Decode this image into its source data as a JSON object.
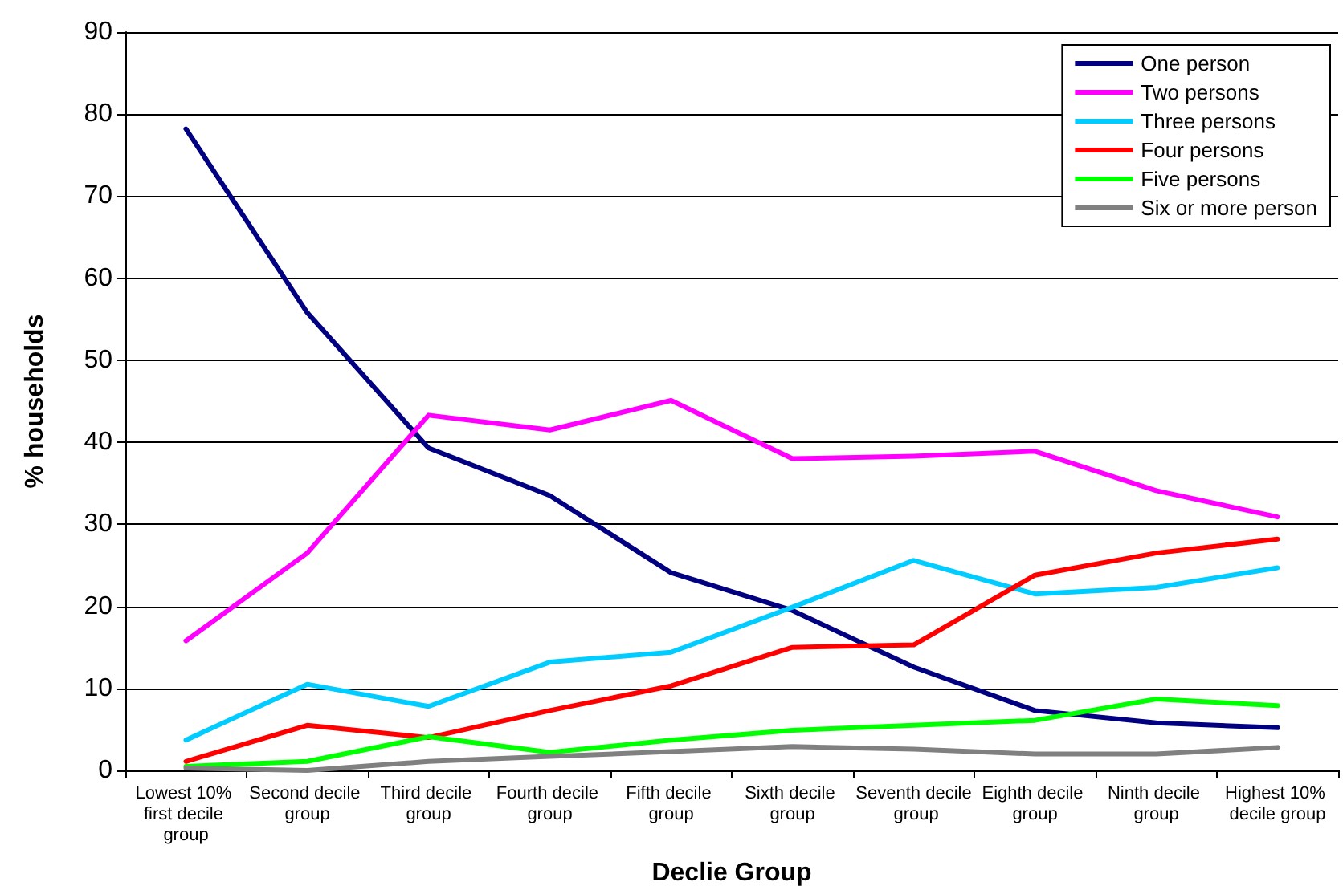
{
  "chart_data": {
    "type": "line",
    "xlabel": "Declie Group",
    "ylabel": "% households",
    "categories": [
      "Lowest 10% first decile group",
      "Second decile group",
      "Third decile group",
      "Fourth decile group",
      "Fifth decile group",
      "Sixth decile group",
      "Seventh decile group",
      "Eighth decile group",
      "Ninth decile group",
      "Highest 10% decile group"
    ],
    "series": [
      {
        "name": "One person",
        "color": "#000080",
        "values": [
          78.2,
          55.8,
          39.3,
          33.5,
          24.1,
          19.5,
          12.6,
          7.3,
          5.8,
          5.2
        ]
      },
      {
        "name": "Two persons",
        "color": "#ff00ff",
        "values": [
          15.8,
          26.5,
          43.3,
          41.5,
          45.1,
          38.0,
          38.3,
          38.9,
          34.1,
          30.9
        ]
      },
      {
        "name": "Three persons",
        "color": "#00ccff",
        "values": [
          3.7,
          10.5,
          7.8,
          13.2,
          14.4,
          19.9,
          25.6,
          21.5,
          22.3,
          24.7
        ]
      },
      {
        "name": "Four persons",
        "color": "#ff0000",
        "values": [
          1.1,
          5.5,
          4.0,
          7.3,
          10.3,
          15.0,
          15.3,
          23.8,
          26.5,
          28.2
        ]
      },
      {
        "name": "Five persons",
        "color": "#00ff00",
        "values": [
          0.5,
          1.1,
          4.1,
          2.2,
          3.7,
          4.9,
          5.5,
          6.1,
          8.7,
          7.9
        ]
      },
      {
        "name": "Six or more person",
        "color": "#808080",
        "values": [
          0.3,
          0.0,
          1.1,
          1.7,
          2.3,
          2.9,
          2.6,
          2.0,
          2.0,
          2.8
        ]
      }
    ],
    "ylim": [
      0,
      90
    ],
    "yticks": [
      0,
      10,
      20,
      30,
      40,
      50,
      60,
      70,
      80,
      90
    ],
    "grid": "y",
    "legend": "top right",
    "marker": "none",
    "line_style": "solid"
  }
}
